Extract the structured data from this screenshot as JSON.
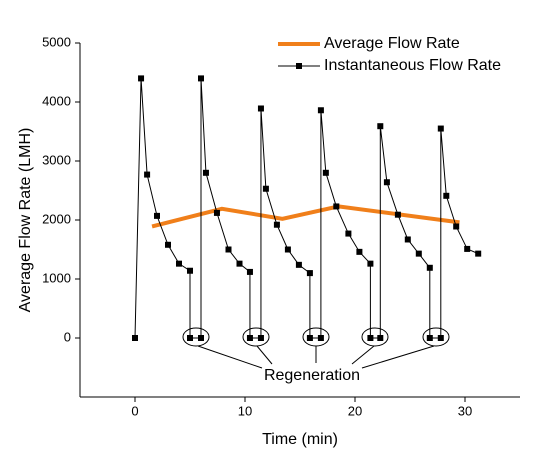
{
  "chart_data": {
    "type": "line",
    "xlabel": "Time (min)",
    "ylabel": "Average Flow Rate (LMH)",
    "xlim": [
      -5,
      35
    ],
    "xticks": [
      0,
      10,
      20,
      30
    ],
    "ylim": [
      -1000,
      5000
    ],
    "yticks": [
      0,
      1000,
      2000,
      3000,
      4000,
      5000
    ],
    "legend": "upper right",
    "annotations": [
      "Regeneration"
    ],
    "series": [
      {
        "name": "Average Flow Rate",
        "color": "#f07f1a",
        "marker": "none",
        "x": [
          1.55,
          7.9,
          13.4,
          18.5,
          29.5
        ],
        "values": [
          1890,
          2190,
          2020,
          2230,
          1960
        ]
      },
      {
        "name": "Instantaneous Flow Rate",
        "color": "#000000",
        "marker": "square",
        "x": [
          0,
          0.55,
          1.1,
          2,
          3,
          4,
          5,
          5,
          6,
          6,
          6.45,
          7.45,
          8.5,
          9.5,
          10.45,
          10.45,
          11.45,
          11.45,
          11.9,
          12.9,
          13.9,
          14.9,
          15.9,
          15.9,
          16.9,
          16.9,
          17.35,
          18.3,
          19.4,
          20.4,
          21.4,
          21.4,
          22.3,
          22.3,
          22.9,
          23.9,
          24.8,
          25.8,
          26.8,
          26.8,
          27.8,
          27.8,
          28.3,
          29.2,
          30.2,
          31.2
        ],
        "values": [
          0,
          4400,
          2770,
          2070,
          1580,
          1260,
          1140,
          0,
          0,
          4400,
          2800,
          2120,
          1500,
          1260,
          1120,
          0,
          0,
          3890,
          2530,
          1920,
          1500,
          1240,
          1100,
          0,
          0,
          3860,
          2800,
          2230,
          1770,
          1460,
          1260,
          0,
          0,
          3590,
          2640,
          2090,
          1670,
          1430,
          1190,
          0,
          0,
          3550,
          2410,
          1890,
          1510,
          1430
        ]
      }
    ]
  }
}
